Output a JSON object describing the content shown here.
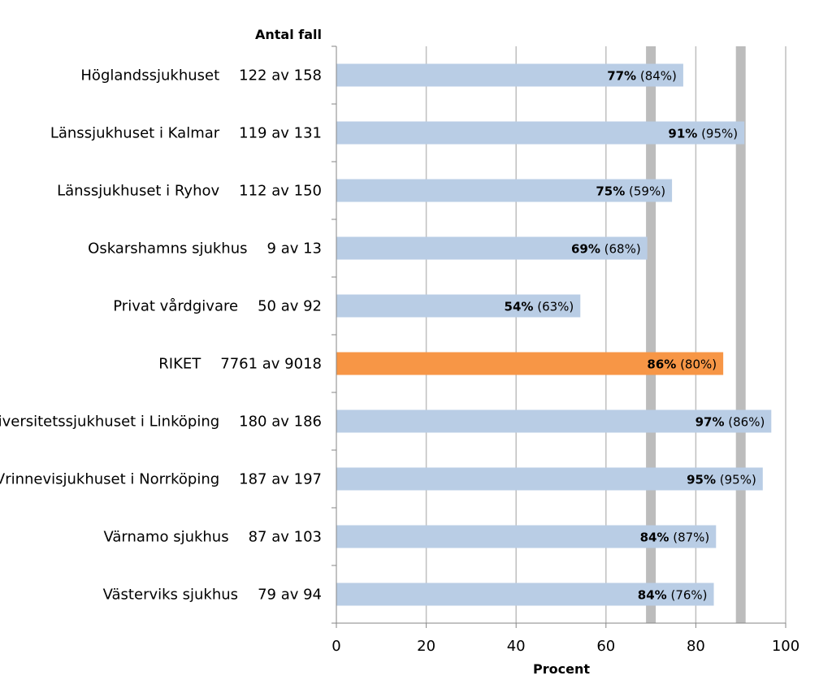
{
  "chart_data": {
    "type": "bar",
    "orientation": "horizontal",
    "count_header": "Antal fall",
    "xlabel": "Procent",
    "xlim": [
      0,
      100
    ],
    "xticks": [
      "0",
      "20",
      "40",
      "60",
      "80",
      "100"
    ],
    "reference_lines": [
      70,
      90
    ],
    "categories": [
      "Höglandssjukhuset",
      "Länssjukhuset i Kalmar",
      "Länssjukhuset i Ryhov",
      "Oskarshamns sjukhus",
      "Privat vårdgivare",
      "RIKET",
      "Universitetssjukhuset i Linköping",
      "Vrinnevisjukhuset i Norrköping",
      "Värnamo sjukhus",
      "Västerviks sjukhus"
    ],
    "counts": [
      "122 av 158",
      "119 av 131",
      "112 av 150",
      "9 av 13",
      "50 av 92",
      "7761 av 9018",
      "180 av 186",
      "187 av 197",
      "87 av 103",
      "79 av 94"
    ],
    "values": [
      77.2,
      90.8,
      74.7,
      69.2,
      54.3,
      86.1,
      96.8,
      94.9,
      84.5,
      84.0
    ],
    "value_labels": [
      "77%",
      "91%",
      "75%",
      "69%",
      "54%",
      "86%",
      "97%",
      "95%",
      "84%",
      "84%"
    ],
    "previous_labels": [
      "(84%)",
      "(95%)",
      "(59%)",
      "(68%)",
      "(63%)",
      "(80%)",
      "(86%)",
      "(95%)",
      "(87%)",
      "(76%)"
    ],
    "highlight": "RIKET",
    "colors": {
      "bar": "#b9cde5",
      "highlight_bar": "#f79646",
      "reference_band": "#a6a6a6",
      "grid": "#bfbfbf",
      "axis": "#868686"
    }
  }
}
